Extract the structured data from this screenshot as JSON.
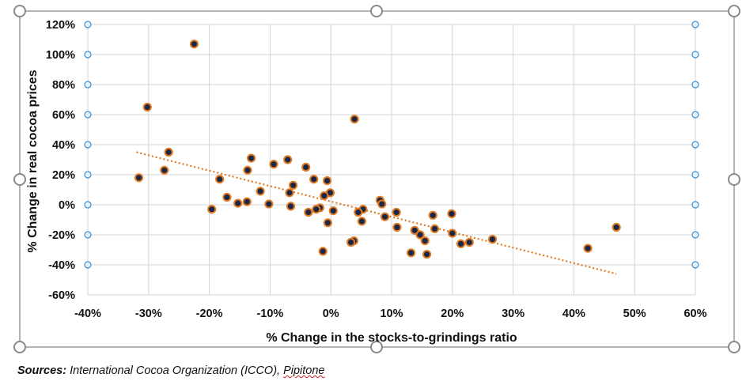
{
  "chart_data": {
    "type": "scatter",
    "title": "",
    "xlabel": "% Change in the stocks-to-grindings ratio",
    "ylabel": "% Change in real cocoa prices",
    "xlim": [
      -40,
      60
    ],
    "ylim": [
      -60,
      120
    ],
    "x_ticks": [
      "-40%",
      "-30%",
      "-20%",
      "-10%",
      "0%",
      "10%",
      "20%",
      "30%",
      "40%",
      "50%",
      "60%"
    ],
    "y_ticks": [
      "120%",
      "100%",
      "80%",
      "60%",
      "40%",
      "20%",
      "0%",
      "-20%",
      "-40%",
      "-60%"
    ],
    "grid": true,
    "legend": "none",
    "marker_fill": "#1a2746",
    "marker_edge": "#e07a22",
    "trendline": {
      "style": "dotted",
      "color": "#e07a22",
      "x": [
        -32,
        47
      ],
      "y": [
        35,
        -46
      ]
    },
    "points": [
      {
        "x": -22.5,
        "y": 107
      },
      {
        "x": -30.2,
        "y": 65
      },
      {
        "x": -26.7,
        "y": 35
      },
      {
        "x": -27.4,
        "y": 23
      },
      {
        "x": -31.6,
        "y": 18
      },
      {
        "x": 3.9,
        "y": 57
      },
      {
        "x": -13.1,
        "y": 31
      },
      {
        "x": -7.1,
        "y": 30
      },
      {
        "x": -9.4,
        "y": 27
      },
      {
        "x": -4.1,
        "y": 25
      },
      {
        "x": -13.7,
        "y": 23
      },
      {
        "x": -18.3,
        "y": 17
      },
      {
        "x": -2.8,
        "y": 17
      },
      {
        "x": -0.6,
        "y": 16
      },
      {
        "x": -6.2,
        "y": 13
      },
      {
        "x": -11.6,
        "y": 9
      },
      {
        "x": -6.8,
        "y": 8
      },
      {
        "x": -0.1,
        "y": 8
      },
      {
        "x": -1.1,
        "y": 6
      },
      {
        "x": -17.1,
        "y": 5
      },
      {
        "x": 8.1,
        "y": 3
      },
      {
        "x": -13.8,
        "y": 2
      },
      {
        "x": -15.3,
        "y": 1
      },
      {
        "x": -10.2,
        "y": 0.5
      },
      {
        "x": 8.4,
        "y": 0.5
      },
      {
        "x": -6.6,
        "y": -1
      },
      {
        "x": -1.8,
        "y": -2
      },
      {
        "x": -2.4,
        "y": -3
      },
      {
        "x": -19.6,
        "y": -3
      },
      {
        "x": 0.4,
        "y": -4
      },
      {
        "x": 5.3,
        "y": -3
      },
      {
        "x": -3.7,
        "y": -5
      },
      {
        "x": 4.5,
        "y": -5
      },
      {
        "x": 10.8,
        "y": -5
      },
      {
        "x": 19.9,
        "y": -6
      },
      {
        "x": 16.8,
        "y": -7
      },
      {
        "x": 8.9,
        "y": -8
      },
      {
        "x": 5.1,
        "y": -11
      },
      {
        "x": -0.5,
        "y": -12
      },
      {
        "x": 10.9,
        "y": -15
      },
      {
        "x": 17.1,
        "y": -16
      },
      {
        "x": 47.0,
        "y": -15
      },
      {
        "x": 13.8,
        "y": -17
      },
      {
        "x": 20.0,
        "y": -19
      },
      {
        "x": 14.7,
        "y": -20
      },
      {
        "x": 15.5,
        "y": -24
      },
      {
        "x": 26.6,
        "y": -23
      },
      {
        "x": 3.8,
        "y": -24
      },
      {
        "x": 22.8,
        "y": -25
      },
      {
        "x": 3.3,
        "y": -25
      },
      {
        "x": 21.4,
        "y": -26
      },
      {
        "x": 42.3,
        "y": -29
      },
      {
        "x": -1.3,
        "y": -31
      },
      {
        "x": 13.2,
        "y": -32
      },
      {
        "x": 15.8,
        "y": -33
      }
    ]
  },
  "footer": {
    "sources_label": "Sources:",
    "sources_text": " International Cocoa Organization (ICCO), ",
    "sources_author": "Pipitone"
  }
}
